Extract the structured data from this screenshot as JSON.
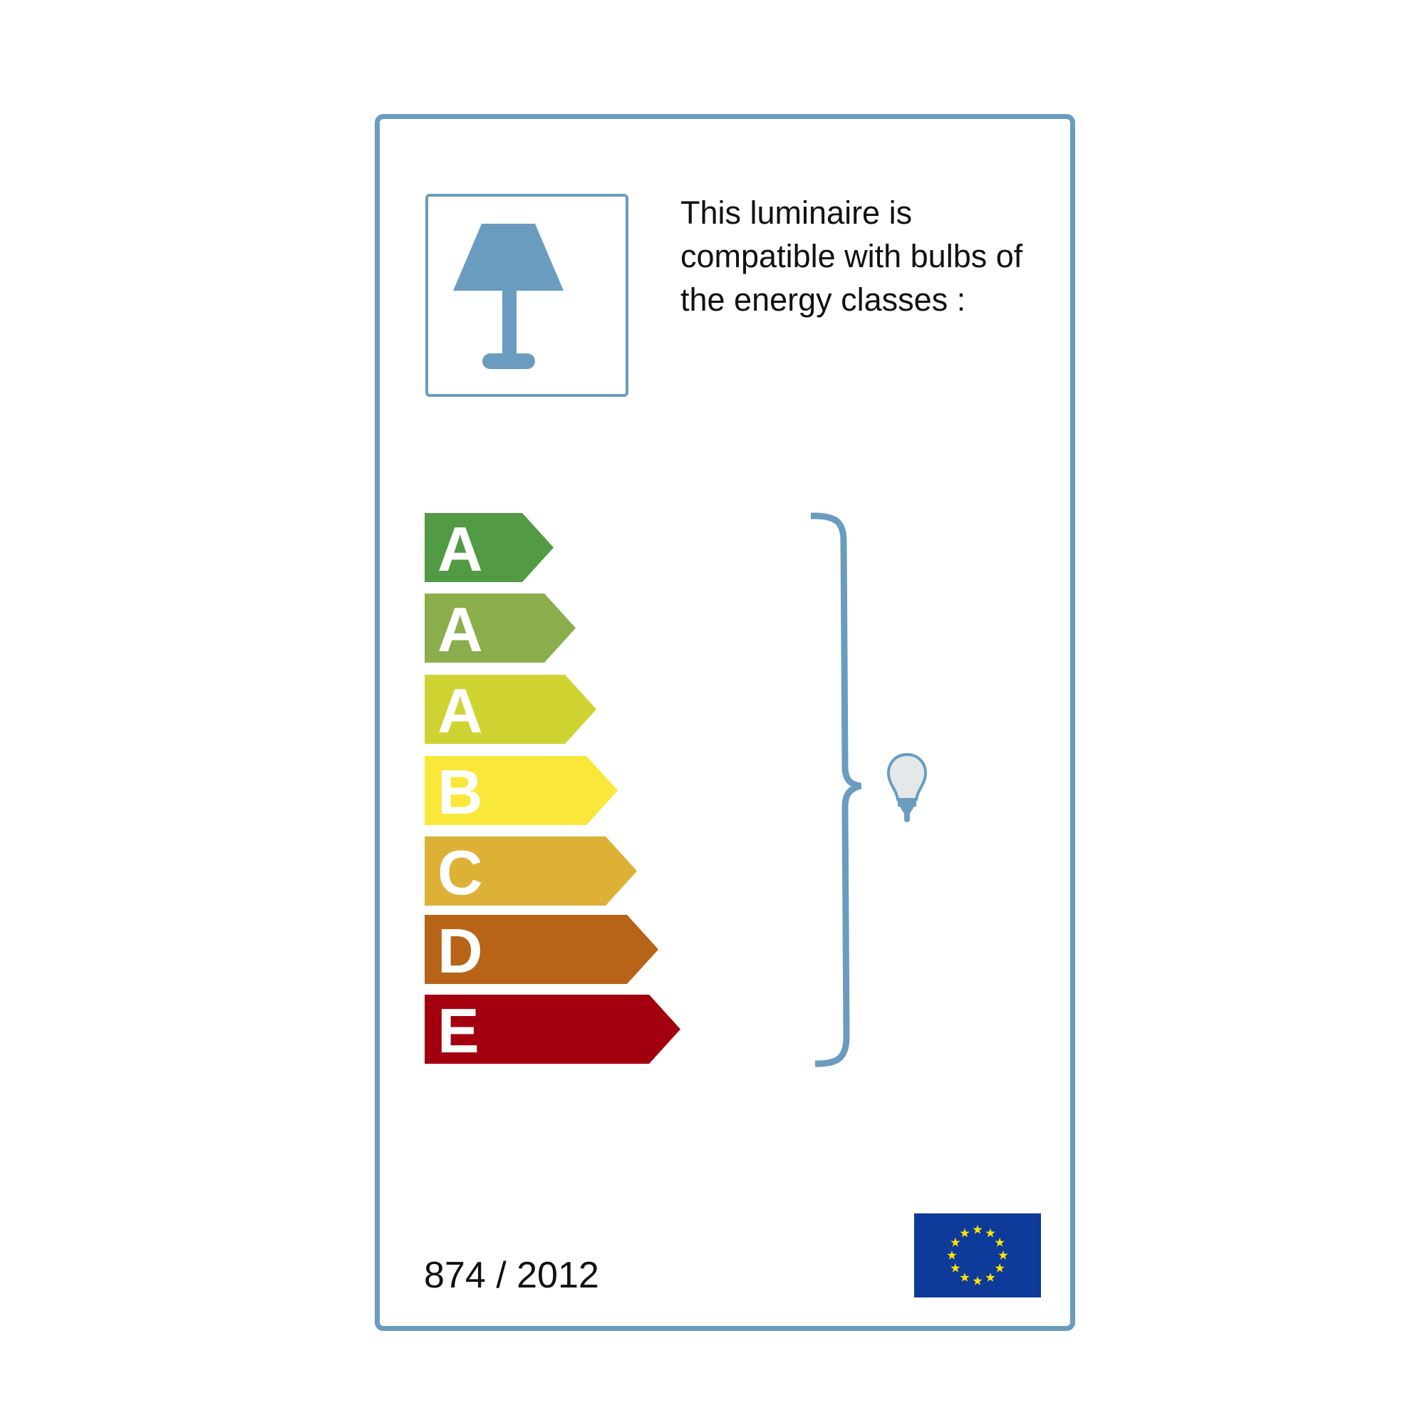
{
  "description": {
    "lines": [
      "This luminaire is",
      "compatible with bulbs of",
      "the energy classes :"
    ]
  },
  "energy_classes": [
    {
      "label": "A",
      "color": "#529a43"
    },
    {
      "label": "A",
      "color": "#8aae4b"
    },
    {
      "label": "A",
      "color": "#cfd332"
    },
    {
      "label": "B",
      "color": "#f9e83a"
    },
    {
      "label": "C",
      "color": "#dcb136"
    },
    {
      "label": "D",
      "color": "#b76318"
    },
    {
      "label": "E",
      "color": "#a3000f"
    }
  ],
  "footer": {
    "regulation": "874 / 2012"
  },
  "icons": {
    "lamp": "table-lamp-icon",
    "bulb": "light-bulb-icon",
    "flag": "eu-flag-icon"
  },
  "colors": {
    "accent": "#6a9cc0",
    "eu_blue": "#0e3a9a",
    "eu_star": "#ffe500"
  }
}
